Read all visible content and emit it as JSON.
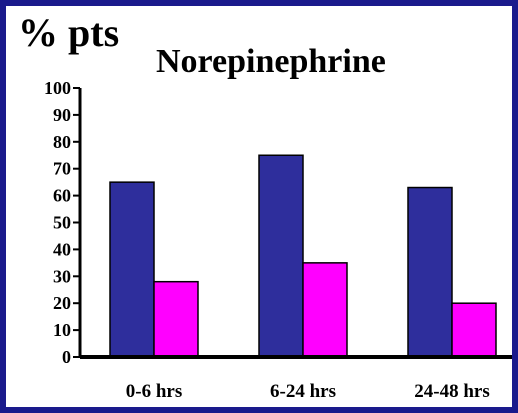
{
  "chart_data": {
    "type": "bar",
    "title": "Norepinephrine",
    "ylabel": "% pts",
    "xlabel": "",
    "categories": [
      "0-6 hrs",
      "6-24 hrs",
      "24-48 hrs"
    ],
    "series": [
      {
        "values": [
          65,
          75,
          63
        ],
        "color": "#2e2e9c"
      },
      {
        "values": [
          28,
          35,
          20
        ],
        "color": "#ff00ff"
      }
    ],
    "ylim": [
      0,
      100
    ],
    "yticks": [
      0,
      10,
      20,
      30,
      40,
      50,
      60,
      70,
      80,
      90,
      100
    ],
    "grid": false,
    "legend": "none"
  },
  "colors": {
    "background": "#ffffff",
    "border": "#1a1a8c",
    "axis": "#000000"
  }
}
